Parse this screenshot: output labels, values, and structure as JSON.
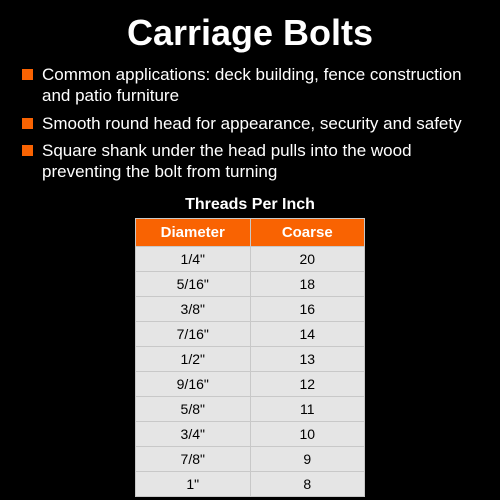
{
  "title": "Carriage Bolts",
  "bullets": [
    "Common applications: deck building, fence construction and patio furniture",
    "Smooth round head for appearance, security and safety",
    "Square shank under the head pulls into the wood preventing the bolt from turning"
  ],
  "table": {
    "title": "Threads Per Inch",
    "columns": [
      "Diameter",
      "Coarse"
    ],
    "rows": [
      [
        "1/4\"",
        "20"
      ],
      [
        "5/16\"",
        "18"
      ],
      [
        "3/8\"",
        "16"
      ],
      [
        "7/16\"",
        "14"
      ],
      [
        "1/2\"",
        "13"
      ],
      [
        "9/16\"",
        "12"
      ],
      [
        "5/8\"",
        "11"
      ],
      [
        "3/4\"",
        "10"
      ],
      [
        "7/8\"",
        "9"
      ],
      [
        "1\"",
        "8"
      ]
    ],
    "header_bg": "#f96302",
    "header_text_color": "#ffffff",
    "cell_bg": "#e5e5e5",
    "cell_text_color": "#000000",
    "border_color": "#c8c8c8",
    "title_fontsize": 16,
    "header_fontsize": 15,
    "cell_fontsize": 14
  },
  "colors": {
    "background": "#000000",
    "text": "#ffffff",
    "accent": "#f96302"
  },
  "typography": {
    "title_fontsize": 36,
    "title_weight": "bold",
    "bullet_fontsize": 17,
    "font_family": "Arial"
  }
}
